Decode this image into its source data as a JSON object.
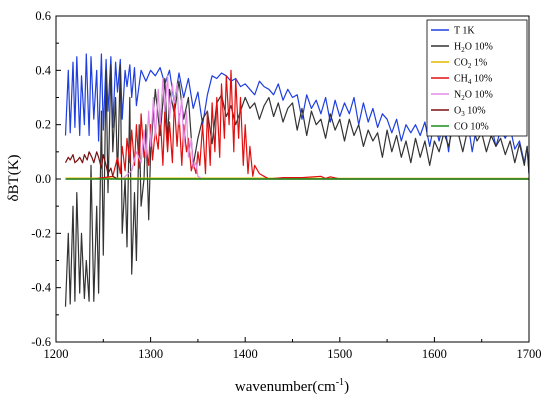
{
  "chart_data": {
    "type": "line",
    "xlabel": "wavenumber(cm",
    "xlabel_sup": "-1",
    "xlabel_close": ")",
    "ylabel": "δBT(K)",
    "xlim": [
      1200,
      1700
    ],
    "ylim": [
      -0.6,
      0.6
    ],
    "xticks": [
      "1200",
      "1300",
      "1400",
      "1500",
      "1600",
      "1700"
    ],
    "yticks": [
      "0.6",
      "0.4",
      "0.2",
      "0.0",
      "-0.2",
      "-0.4",
      "-0.6"
    ],
    "grid": false,
    "legend_position": "top-right",
    "series": [
      {
        "name": "T 1K",
        "name_parts": [
          "T 1K"
        ],
        "color": "#1f3fe0",
        "x": [
          1210,
          1213,
          1215,
          1218,
          1220,
          1222,
          1225,
          1227,
          1230,
          1232,
          1235,
          1237,
          1240,
          1243,
          1245,
          1248,
          1250,
          1253,
          1255,
          1258,
          1260,
          1263,
          1265,
          1268,
          1270,
          1273,
          1275,
          1278,
          1280,
          1283,
          1285,
          1290,
          1295,
          1300,
          1305,
          1310,
          1315,
          1320,
          1325,
          1330,
          1335,
          1340,
          1345,
          1350,
          1355,
          1360,
          1365,
          1370,
          1375,
          1380,
          1385,
          1390,
          1395,
          1400,
          1405,
          1410,
          1415,
          1420,
          1425,
          1430,
          1435,
          1440,
          1445,
          1450,
          1455,
          1460,
          1465,
          1470,
          1475,
          1480,
          1485,
          1490,
          1495,
          1500,
          1505,
          1510,
          1515,
          1520,
          1525,
          1530,
          1535,
          1540,
          1545,
          1550,
          1555,
          1560,
          1565,
          1570,
          1575,
          1580,
          1585,
          1590,
          1595,
          1600,
          1605,
          1610,
          1615,
          1620,
          1625,
          1630,
          1635,
          1640,
          1645,
          1650,
          1655,
          1660,
          1665,
          1670,
          1675,
          1680,
          1685,
          1690,
          1695,
          1698,
          1700
        ],
        "y": [
          0.16,
          0.4,
          0.17,
          0.43,
          0.19,
          0.45,
          0.16,
          0.38,
          0.2,
          0.46,
          0.16,
          0.45,
          0.22,
          0.4,
          0.14,
          0.46,
          0.18,
          0.44,
          0.25,
          0.45,
          0.19,
          0.43,
          0.32,
          0.44,
          0.22,
          0.4,
          0.34,
          0.42,
          0.3,
          0.41,
          0.27,
          0.4,
          0.36,
          0.4,
          0.38,
          0.41,
          0.35,
          0.4,
          0.28,
          0.39,
          0.3,
          0.37,
          0.26,
          0.32,
          0.2,
          0.31,
          0.38,
          0.37,
          0.39,
          0.38,
          0.36,
          0.37,
          0.34,
          0.35,
          0.33,
          0.31,
          0.36,
          0.34,
          0.33,
          0.31,
          0.35,
          0.29,
          0.33,
          0.3,
          0.31,
          0.22,
          0.31,
          0.26,
          0.29,
          0.24,
          0.3,
          0.21,
          0.29,
          0.23,
          0.28,
          0.24,
          0.3,
          0.2,
          0.28,
          0.21,
          0.26,
          0.19,
          0.24,
          0.22,
          0.17,
          0.22,
          0.14,
          0.2,
          0.17,
          0.2,
          0.16,
          0.21,
          0.12,
          0.21,
          0.14,
          0.22,
          0.1,
          0.25,
          0.3,
          0.2,
          0.22,
          0.1,
          0.2,
          0.23,
          0.16,
          0.2,
          0.12,
          0.18,
          0.15,
          0.19,
          0.11,
          0.14,
          0.06,
          0.12,
          0.02
        ]
      },
      {
        "name": "H2O 10%",
        "name_parts": [
          "H",
          "2",
          "O 10%"
        ],
        "color": "#333333",
        "x": [
          1210,
          1213,
          1215,
          1218,
          1220,
          1222,
          1225,
          1227,
          1230,
          1232,
          1235,
          1237,
          1240,
          1243,
          1245,
          1248,
          1250,
          1253,
          1255,
          1258,
          1260,
          1263,
          1265,
          1268,
          1270,
          1273,
          1275,
          1278,
          1280,
          1283,
          1285,
          1288,
          1290,
          1293,
          1295,
          1298,
          1300,
          1305,
          1310,
          1315,
          1318,
          1320,
          1325,
          1330,
          1335,
          1340,
          1345,
          1350,
          1355,
          1360,
          1365,
          1370,
          1375,
          1380,
          1385,
          1390,
          1395,
          1400,
          1405,
          1410,
          1415,
          1420,
          1425,
          1430,
          1435,
          1440,
          1445,
          1450,
          1455,
          1460,
          1465,
          1470,
          1475,
          1480,
          1485,
          1490,
          1495,
          1500,
          1505,
          1510,
          1515,
          1520,
          1525,
          1530,
          1535,
          1540,
          1545,
          1550,
          1555,
          1560,
          1565,
          1570,
          1575,
          1580,
          1585,
          1590,
          1595,
          1600,
          1605,
          1610,
          1615,
          1620,
          1625,
          1630,
          1635,
          1640,
          1645,
          1650,
          1655,
          1660,
          1665,
          1670,
          1675,
          1680,
          1685,
          1690,
          1695,
          1698,
          1700
        ],
        "y": [
          -0.47,
          -0.2,
          -0.46,
          -0.1,
          -0.45,
          -0.05,
          -0.42,
          -0.2,
          -0.44,
          -0.3,
          -0.45,
          0.05,
          -0.45,
          -0.1,
          -0.42,
          0.25,
          -0.28,
          0.4,
          -0.05,
          0.42,
          0.1,
          0.3,
          0.0,
          0.42,
          -0.2,
          0.0,
          -0.25,
          0.3,
          -0.35,
          -0.05,
          -0.3,
          0.2,
          -0.1,
          0.0,
          0.2,
          -0.15,
          0.1,
          0.33,
          0.16,
          0.37,
          0.13,
          0.33,
          0.24,
          0.36,
          0.22,
          0.3,
          0.05,
          0.15,
          0.22,
          0.25,
          0.13,
          0.28,
          0.31,
          0.23,
          0.27,
          0.2,
          0.25,
          0.3,
          0.26,
          0.28,
          0.22,
          0.27,
          0.3,
          0.23,
          0.28,
          0.21,
          0.26,
          0.28,
          0.18,
          0.26,
          0.16,
          0.25,
          0.2,
          0.22,
          0.15,
          0.24,
          0.18,
          0.22,
          0.14,
          0.22,
          0.16,
          0.2,
          0.12,
          0.18,
          0.14,
          0.17,
          0.08,
          0.18,
          0.1,
          0.16,
          0.08,
          0.14,
          0.06,
          0.15,
          0.08,
          0.14,
          0.05,
          0.14,
          0.1,
          0.17,
          0.12,
          0.2,
          0.17,
          0.1,
          0.18,
          0.2,
          0.14,
          0.17,
          0.1,
          0.16,
          0.12,
          0.15,
          0.09,
          0.14,
          0.06,
          0.13,
          0.05,
          0.12,
          0.02
        ]
      },
      {
        "name": "CO2 1%",
        "name_parts": [
          "CO",
          "2",
          " 1%"
        ],
        "color": "#e6b800",
        "x": [
          1210,
          1300,
          1400,
          1500,
          1600,
          1700
        ],
        "y": [
          0.003,
          0.003,
          0.003,
          0.002,
          0.002,
          0.002
        ]
      },
      {
        "name": "CH4 10%",
        "name_parts": [
          "CH",
          "4",
          " 10%"
        ],
        "color": "#e01010",
        "x": [
          1210,
          1240,
          1260,
          1265,
          1268,
          1270,
          1273,
          1275,
          1278,
          1280,
          1283,
          1285,
          1288,
          1290,
          1293,
          1295,
          1298,
          1300,
          1302,
          1305,
          1308,
          1310,
          1313,
          1315,
          1318,
          1320,
          1323,
          1325,
          1328,
          1330,
          1333,
          1335,
          1338,
          1340,
          1343,
          1345,
          1348,
          1350,
          1352,
          1355,
          1358,
          1360,
          1363,
          1365,
          1368,
          1370,
          1373,
          1375,
          1378,
          1380,
          1383,
          1385,
          1388,
          1390,
          1393,
          1395,
          1398,
          1400,
          1403,
          1405,
          1408,
          1410,
          1415,
          1420,
          1425,
          1440,
          1460,
          1480,
          1485,
          1490,
          1500,
          1600,
          1700
        ],
        "y": [
          0.0,
          0.0,
          0.01,
          0.08,
          0.02,
          0.12,
          0.03,
          0.15,
          0.06,
          0.18,
          0.05,
          0.2,
          0.04,
          0.24,
          0.08,
          0.12,
          0.05,
          0.2,
          0.07,
          0.18,
          0.11,
          0.24,
          0.05,
          0.25,
          0.1,
          0.21,
          0.06,
          0.28,
          0.12,
          0.24,
          0.05,
          0.2,
          0.1,
          0.15,
          0.03,
          0.06,
          0.02,
          0.1,
          0.05,
          0.2,
          0.02,
          0.25,
          0.05,
          0.28,
          0.1,
          0.3,
          0.08,
          0.35,
          0.15,
          0.38,
          0.2,
          0.4,
          0.1,
          0.37,
          0.15,
          0.3,
          0.05,
          0.2,
          0.02,
          0.12,
          0.01,
          0.05,
          0.02,
          0.01,
          0.0,
          0.005,
          0.005,
          0.01,
          0.002,
          0.008,
          0.0,
          0.0,
          0.0
        ]
      },
      {
        "name": "N2O 10%",
        "name_parts": [
          "N",
          "2",
          "O 10%"
        ],
        "color": "#e68ce6",
        "x": [
          1210,
          1270,
          1280,
          1285,
          1290,
          1293,
          1295,
          1298,
          1300,
          1303,
          1305,
          1308,
          1310,
          1313,
          1315,
          1318,
          1320,
          1323,
          1325,
          1328,
          1330,
          1333,
          1335,
          1338,
          1340,
          1343,
          1345,
          1348,
          1350,
          1355,
          1360,
          1400,
          1500,
          1600,
          1700
        ],
        "y": [
          0.0,
          0.0,
          0.03,
          0.1,
          0.06,
          0.18,
          0.08,
          0.25,
          0.12,
          0.3,
          0.15,
          0.33,
          0.2,
          0.37,
          0.25,
          0.38,
          0.22,
          0.35,
          0.28,
          0.35,
          0.2,
          0.3,
          0.12,
          0.25,
          0.08,
          0.15,
          0.04,
          0.06,
          0.01,
          0.0,
          0.0,
          0.0,
          0.0,
          0.0,
          0.0
        ]
      },
      {
        "name": "O3 10%",
        "name_parts": [
          "O",
          "3",
          " 10%"
        ],
        "color": "#7a1010",
        "x": [
          1210,
          1213,
          1215,
          1218,
          1220,
          1223,
          1225,
          1228,
          1230,
          1233,
          1235,
          1238,
          1240,
          1243,
          1245,
          1248,
          1250,
          1253,
          1255,
          1258,
          1260,
          1265,
          1270,
          1300,
          1400,
          1500,
          1600,
          1700
        ],
        "y": [
          0.06,
          0.08,
          0.07,
          0.09,
          0.06,
          0.07,
          0.08,
          0.06,
          0.09,
          0.07,
          0.1,
          0.08,
          0.06,
          0.1,
          0.08,
          0.04,
          0.09,
          0.05,
          0.02,
          0.04,
          0.01,
          0.0,
          0.0,
          0.0,
          0.0,
          0.0,
          0.0,
          0.0
        ]
      },
      {
        "name": "CO 10%",
        "name_parts": [
          "CO 10%"
        ],
        "color": "#1a8f1a",
        "x": [
          1210,
          1300,
          1400,
          1500,
          1600,
          1700
        ],
        "y": [
          0.0,
          0.0,
          0.0,
          0.0,
          0.0,
          0.0
        ]
      }
    ]
  }
}
